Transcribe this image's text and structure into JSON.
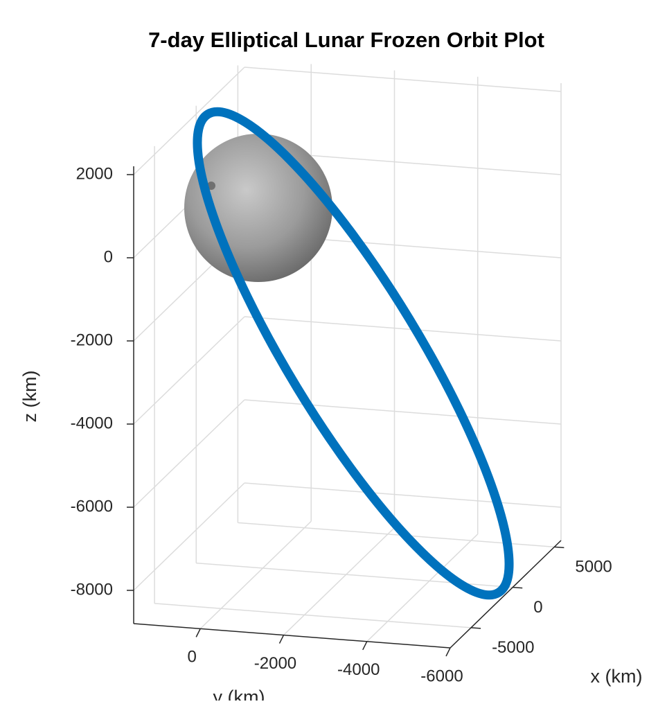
{
  "chart_data": {
    "type": "line3d",
    "title": "7-day Elliptical Lunar Frozen Orbit Plot",
    "xlabel": "x (km)",
    "ylabel": "y (km)",
    "zlabel": "z (km)",
    "xlim": [
      -7500,
      5800
    ],
    "xticks": [
      -5000,
      0,
      5000
    ],
    "ylim": [
      1600,
      -6000
    ],
    "yticks": [
      0,
      -2000,
      -4000,
      -6000
    ],
    "zlim": [
      -8800,
      2200
    ],
    "zticks": [
      -8000,
      -6000,
      -4000,
      -2000,
      0,
      2000
    ],
    "grid": true,
    "color": "#0072bd"
  }
}
